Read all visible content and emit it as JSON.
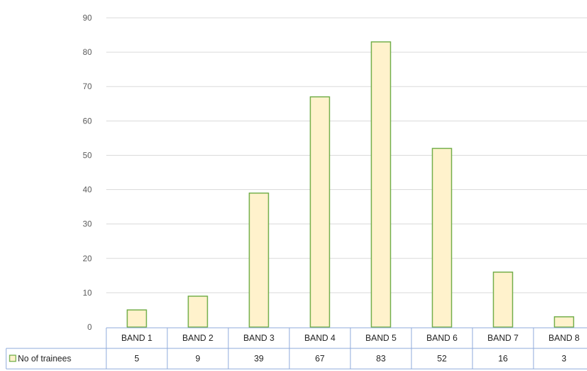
{
  "chart_data": {
    "type": "bar",
    "categories": [
      "BAND 1",
      "BAND 2",
      "BAND 3",
      "BAND 4",
      "BAND 5",
      "BAND 6",
      "BAND 7",
      "BAND 8"
    ],
    "series": [
      {
        "name": "No of trainees",
        "values": [
          5,
          9,
          39,
          67,
          83,
          52,
          16,
          3
        ]
      }
    ],
    "ylim": [
      0,
      90
    ],
    "yticks": [
      0,
      10,
      20,
      30,
      40,
      50,
      60,
      70,
      80,
      90
    ],
    "grid": true,
    "data_table": true,
    "legend_position": "left of data table",
    "colors": {
      "bar_fill": "#fff2cc",
      "bar_stroke": "#70ad47",
      "grid": "#d9d9d9",
      "table_border": "#8eaadb"
    }
  }
}
